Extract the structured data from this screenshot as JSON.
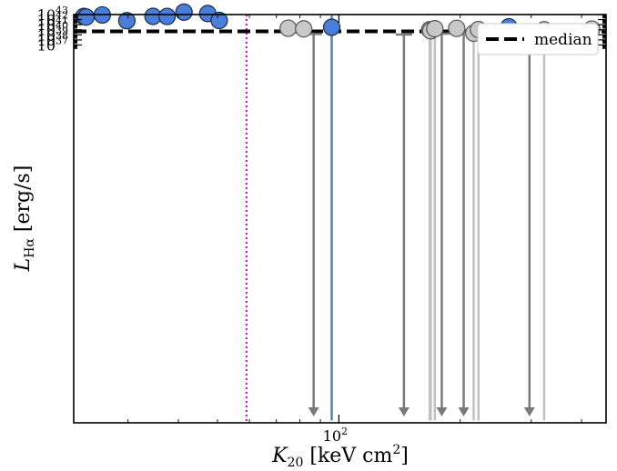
{
  "chart_data": {
    "type": "scatter",
    "title": "",
    "xlabel": {
      "main": "K",
      "sub": "20",
      "units_pre": " [keV cm",
      "units_sup": "2",
      "units_post": "]"
    },
    "ylabel": {
      "main": "L",
      "sub": "Hα",
      "units": " [erg/s]"
    },
    "xscale": "log",
    "yscale": "log",
    "xlim": [
      22,
      460
    ],
    "ylim": [
      3.3e-38,
      10000000000000000000000000000000000000000000
    ],
    "x_ticks": [
      {
        "value": 100,
        "base": "10",
        "exp": "2"
      }
    ],
    "y_ticks": [
      {
        "value": 10000000000000000000000000000000000000,
        "base": "10",
        "exp": "37"
      },
      {
        "value": 100000000000000000000000000000000000000,
        "base": "10",
        "exp": "38"
      },
      {
        "value": 1000000000000000000000000000000000000000,
        "base": "10",
        "exp": "39"
      },
      {
        "value": 10000000000000000000000000000000000000000,
        "base": "10",
        "exp": "40"
      },
      {
        "value": 100000000000000000000000000000000000000000,
        "base": "10",
        "exp": "41"
      },
      {
        "value": 1000000000000000000000000000000000000000000,
        "base": "10",
        "exp": "42"
      },
      {
        "value": 10000000000000000000000000000000000000000000,
        "base": "10",
        "exp": "43"
      }
    ],
    "legend": {
      "position": "top-right",
      "entries": [
        {
          "label": "median",
          "style": "dashed",
          "color": "#000000"
        }
      ]
    },
    "median_y": 4800000000000000000000000000000000000000,
    "threshold_x": 59,
    "grid": false,
    "colors": {
      "blue": "#4a7fd9",
      "blue_edge": "#1a2a4a",
      "gray": "#c8c8c8",
      "gray_edge": "#555555",
      "gray_err": "#c0c0c0",
      "upper_limit": "#7a7a7a",
      "threshold": "#cc00cc",
      "median": "#000000"
    },
    "series": [
      {
        "group": "blue",
        "points": [
          {
            "x": 23.3,
            "y": 4200000000000000000000000000000000000000000
          },
          {
            "x": 23.6,
            "y": 3200000000000000000000000000000000000000000
          },
          {
            "x": 25.9,
            "y": 8300000000000000000000000000000000000000000
          },
          {
            "x": 29.8,
            "y": 610000000000000000000000000000000000000000
          },
          {
            "x": 34.6,
            "y": 4400000000000000000000000000000000000000000
          },
          {
            "x": 37.5,
            "y": 4300000000000000000000000000000000000000000
          },
          {
            "x": 41.3,
            "y": 30000000000000000000000000000000000000000000
          },
          {
            "x": 47.3,
            "y": 16000000000000000000000000000000000000000000
          },
          {
            "x": 50.5,
            "y": 680000000000000000000000000000000000000000
          },
          {
            "x": 96.0,
            "y": 31000000000000000000000000000000000000000,
            "err": [
              1e-37,
              6300000000000000000000000000000000000000000
            ]
          },
          {
            "x": 264,
            "y": 38000000000000000000000000000000000000000
          }
        ]
      },
      {
        "group": "gray",
        "points": [
          {
            "x": 74.9,
            "y": 20000000000000000000000000000000000000000,
            "err": [
              2700000000000000000000000000000000000000,
              35000000000000000000000000000000000000000
            ]
          },
          {
            "x": 81.8,
            "y": 15000000000000000000000000000000000000000,
            "err": [
              6400000000000000000000000000000000000000,
              26000000000000000000000000000000000000000
            ]
          },
          {
            "x": 168,
            "y": 10000000000000000000000000000000000000000,
            "err": [
              1e-37,
              35000000000000000000000000000000000000000
            ]
          },
          {
            "x": 169,
            "y": 6500000000000000000000000000000000000000,
            "err": [
              1e-37,
              12000000000000000000000000000000000000000
            ]
          },
          {
            "x": 173,
            "y": 16000000000000000000000000000000000000000,
            "err": [
              1e-37,
              26000000000000000000000000000000000000000
            ]
          },
          {
            "x": 196,
            "y": 19000000000000000000000000000000000000000,
            "err": [
              12000000000000000000000000000000000000000,
              26000000000000000000000000000000000000000
            ]
          },
          {
            "x": 216,
            "y": 2100000000000000000000000000000000000000,
            "err": [
              1e-37,
              3100000000000000000000000000000000000000
            ]
          },
          {
            "x": 222,
            "y": 11000000000000000000000000000000000000000,
            "err": [
              1e-37,
              19000000000000000000000000000000000000000
            ]
          },
          {
            "x": 323,
            "y": 10000000000000000000000000000000000000000,
            "err": [
              1e-37,
              64000000000000000000000000000000000000000
            ]
          },
          {
            "x": 424,
            "y": 14000000000000000000000000000000000000000,
            "err": [
              1300000000000000000000000000000000000000,
              27000000000000000000000000000000000000000
            ]
          }
        ]
      },
      {
        "group": "upper_limits",
        "points": [
          {
            "x": 86.6,
            "y": 1500000000000000000000000000000000000000
          },
          {
            "x": 145,
            "y": 1150000000000000000000000000000000000000
          },
          {
            "x": 180,
            "y": 1700000000000000000000000000000000000000
          },
          {
            "x": 204,
            "y": 3300000000000000000000000000000000000000
          },
          {
            "x": 297,
            "y": 1350000000000000000000000000000000000000
          }
        ]
      }
    ]
  }
}
